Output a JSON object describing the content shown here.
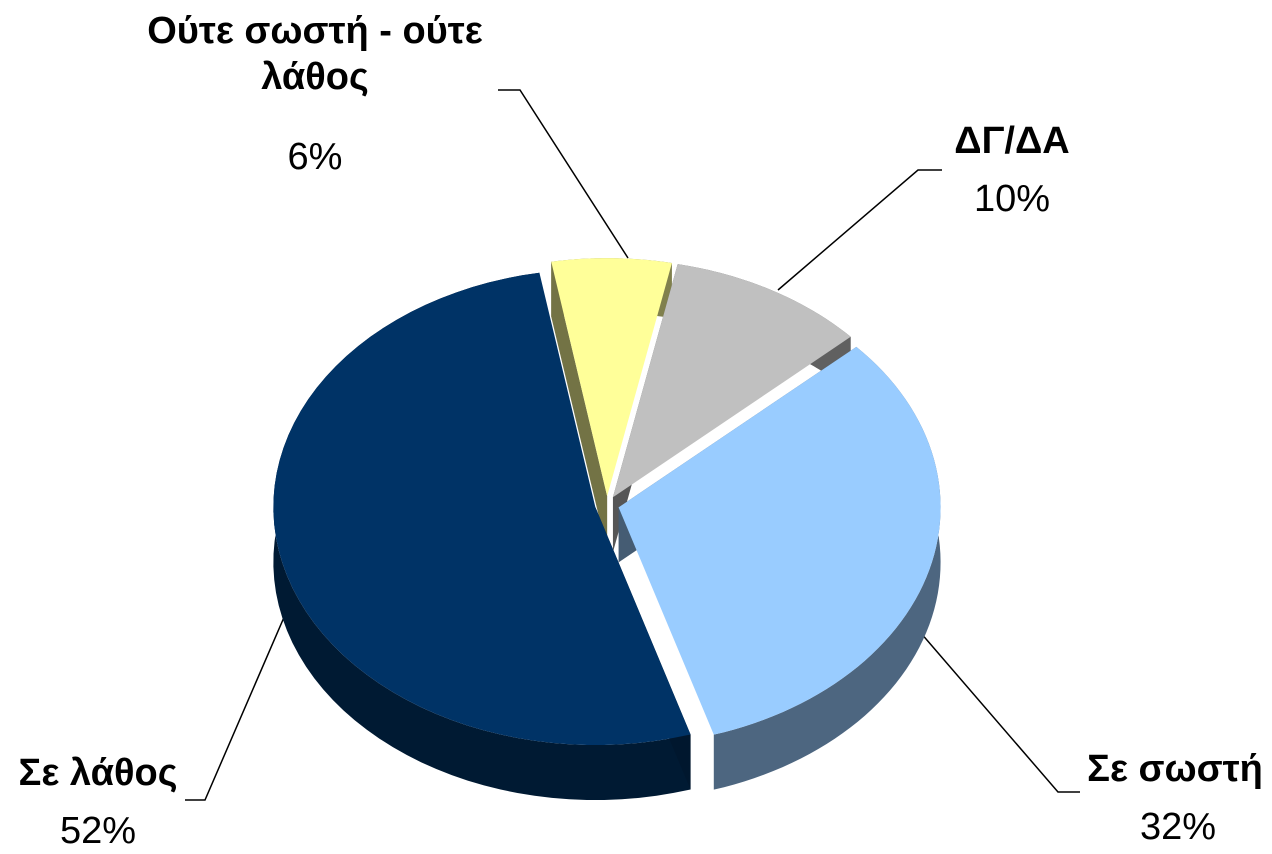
{
  "chart_data": {
    "type": "pie",
    "categories": [
      "Ούτε σωστή - ούτε λάθος",
      "ΔΓ/ΔΑ",
      "Σε σωστή",
      "Σε λάθος"
    ],
    "values": [
      6,
      10,
      32,
      52
    ],
    "value_labels": [
      "6%",
      "10%",
      "32%",
      "52%"
    ],
    "colors": [
      "#ffff99",
      "#c0c0c0",
      "#99ccff",
      "#003366"
    ]
  }
}
